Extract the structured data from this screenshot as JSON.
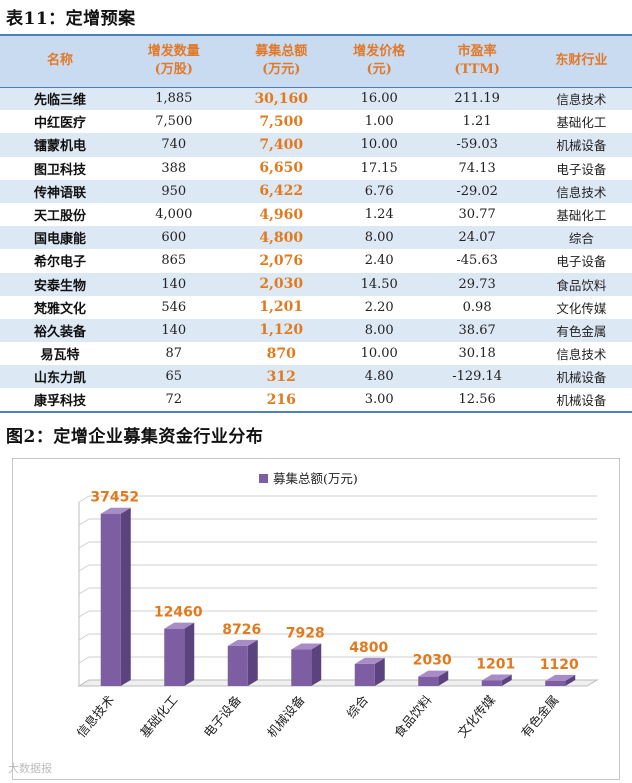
{
  "table_caption": "表11：定增预案",
  "table": {
    "headers": [
      "名称",
      "增发数量\n(万股)",
      "募集总额\n(万元)",
      "增发价格\n(元)",
      "市盈率\n(TTM)",
      "东财行业"
    ],
    "rows": [
      [
        "先临三维",
        "1,885",
        "30,160",
        "16.00",
        "211.19",
        "信息技术"
      ],
      [
        "中红医疗",
        "7,500",
        "7,500",
        "1.00",
        "1.21",
        "基础化工"
      ],
      [
        "镭蒙机电",
        "740",
        "7,400",
        "10.00",
        "-59.03",
        "机械设备"
      ],
      [
        "图卫科技",
        "388",
        "6,650",
        "17.15",
        "74.13",
        "电子设备"
      ],
      [
        "传神语联",
        "950",
        "6,422",
        "6.76",
        "-29.02",
        "信息技术"
      ],
      [
        "天工股份",
        "4,000",
        "4,960",
        "1.24",
        "30.77",
        "基础化工"
      ],
      [
        "国电康能",
        "600",
        "4,800",
        "8.00",
        "24.07",
        "综合"
      ],
      [
        "希尔电子",
        "865",
        "2,076",
        "2.40",
        "-45.63",
        "电子设备"
      ],
      [
        "安泰生物",
        "140",
        "2,030",
        "14.50",
        "29.73",
        "食品饮料"
      ],
      [
        "梵雅文化",
        "546",
        "1,201",
        "2.20",
        "0.98",
        "文化传媒"
      ],
      [
        "裕久装备",
        "140",
        "1,120",
        "8.00",
        "38.67",
        "有色金属"
      ],
      [
        "易瓦特",
        "87",
        "870",
        "10.00",
        "30.18",
        "信息技术"
      ],
      [
        "山东力凯",
        "65",
        "312",
        "4.80",
        "-129.14",
        "机械设备"
      ],
      [
        "康孚科技",
        "72",
        "216",
        "3.00",
        "12.56",
        "机械设备"
      ]
    ]
  },
  "figure_caption": "图2：定增企业募集资金行业分布",
  "watermark": "大数据报",
  "colors": {
    "bar_front": "#7d5ea3",
    "bar_side": "#5c4380",
    "bar_top": "#a78cc6",
    "label": "#e27a1d",
    "header_bg": "#c9dbf0",
    "row_alt": "#dde8f5"
  },
  "chart_data": {
    "type": "bar",
    "categories": [
      "信息技术",
      "基础化工",
      "电子设备",
      "机械设备",
      "综合",
      "食品饮料",
      "文化传媒",
      "有色金属"
    ],
    "series": [
      {
        "name": "募集总额(万元)",
        "values": [
          37452,
          12460,
          8726,
          7928,
          4800,
          2030,
          1201,
          1120
        ]
      }
    ],
    "data_labels": [
      "37452",
      "12460",
      "8726",
      "7928",
      "4800",
      "2030",
      "1201",
      "1120"
    ],
    "ylim": [
      0,
      40000
    ],
    "grid": true,
    "legend_position": "top-center",
    "three_d": true
  }
}
